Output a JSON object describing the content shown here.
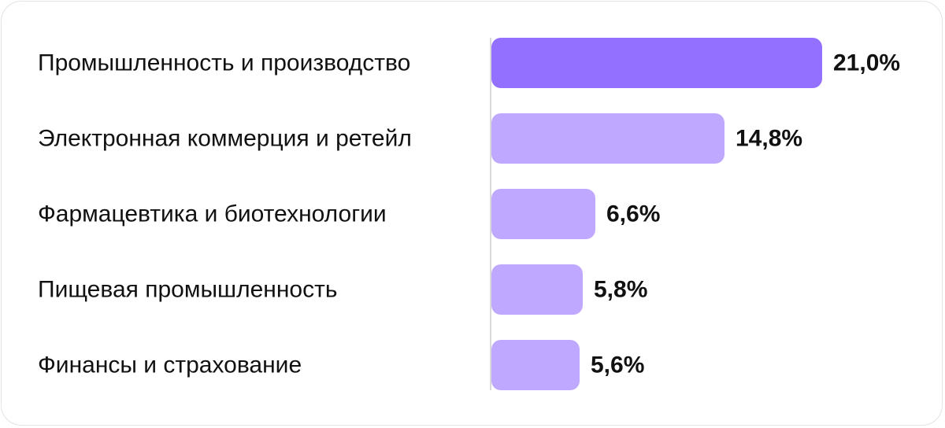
{
  "chart_data": {
    "type": "bar",
    "orientation": "horizontal",
    "categories": [
      "Промышленность и производство",
      "Электронная коммерция и ретейл",
      "Фармацевтика и биотехнологии",
      "Пищевая промышленность",
      "Финансы и страхование"
    ],
    "values": [
      21.0,
      14.8,
      6.6,
      5.8,
      5.6
    ],
    "value_labels": [
      "21,0%",
      "14,8%",
      "6,6%",
      "5,8%",
      "5,6%"
    ],
    "xlim": [
      0,
      21.0
    ],
    "grid": false,
    "legend": "none",
    "colors": {
      "highlight": "#9370FF",
      "bar": "#BFA8FF",
      "axis": "#d9d9d9",
      "text": "#111111"
    }
  }
}
